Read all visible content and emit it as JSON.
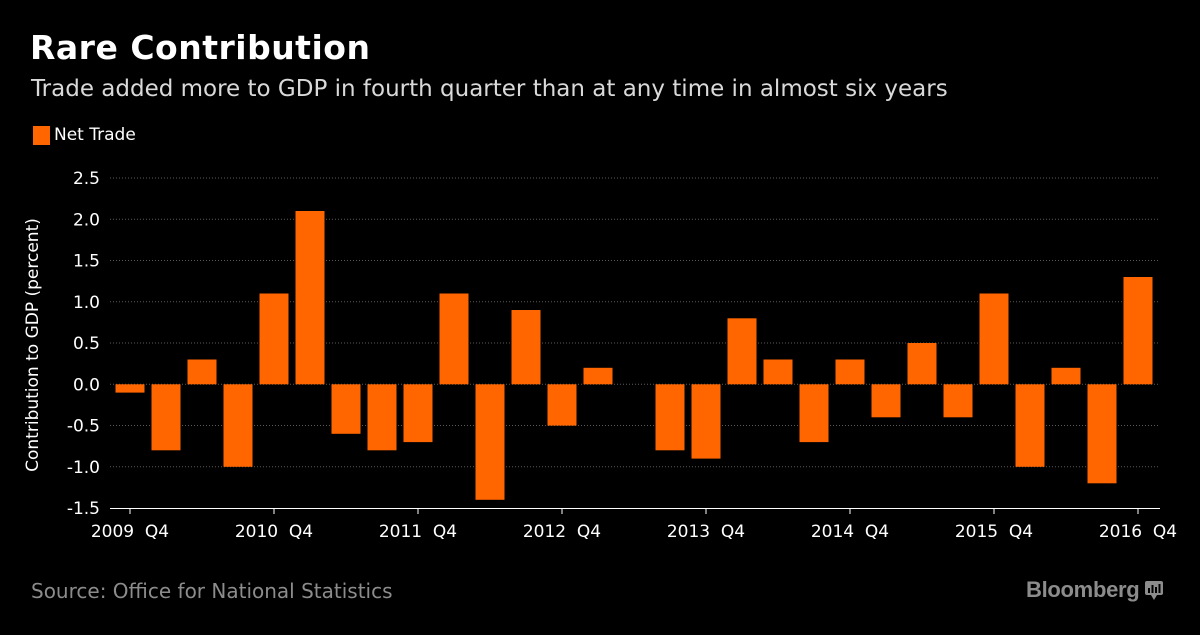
{
  "header": {
    "title": "Rare Contribution",
    "subtitle": "Trade added more to GDP in fourth quarter than at any time in almost six years"
  },
  "footer": {
    "source": "Source: Office for National Statistics",
    "brand": "Bloomberg"
  },
  "colors": {
    "bar": "#ff6600",
    "background": "#000000",
    "grid": "#5a5a5a",
    "axis_text": "#ffffff"
  },
  "chart_data": {
    "type": "bar",
    "title": "Rare Contribution",
    "subtitle": "Trade added more to GDP in fourth quarter than at any time in almost six years",
    "xlabel": "",
    "ylabel": "Contribution to GDP (percent)",
    "ylim": [
      -1.5,
      2.5
    ],
    "yticks": [
      2.5,
      2.0,
      1.5,
      1.0,
      0.5,
      0.0,
      -0.5,
      -1.0,
      -1.5
    ],
    "ytick_labels": [
      "2.5",
      "2.0",
      "1.5",
      "1.0",
      "0.5",
      "0.0",
      "-0.5",
      "-1.0",
      "-1.5"
    ],
    "grid": true,
    "legend": {
      "position": "top-left",
      "entries": [
        "Net Trade"
      ]
    },
    "categories": [
      "2009 Q4",
      "2010 Q1",
      "2010 Q2",
      "2010 Q3",
      "2010 Q4",
      "2011 Q1",
      "2011 Q2",
      "2011 Q3",
      "2011 Q4",
      "2012 Q1",
      "2012 Q2",
      "2012 Q3",
      "2012 Q4",
      "2013 Q1",
      "2013 Q2",
      "2013 Q3",
      "2013 Q4",
      "2014 Q1",
      "2014 Q2",
      "2014 Q3",
      "2014 Q4",
      "2015 Q1",
      "2015 Q2",
      "2015 Q3",
      "2015 Q4",
      "2016 Q1",
      "2016 Q2",
      "2016 Q3",
      "2016 Q4"
    ],
    "series": [
      {
        "name": "Net Trade",
        "values": [
          -0.1,
          -0.8,
          0.3,
          -1.0,
          1.1,
          2.1,
          -0.6,
          -0.8,
          -0.7,
          1.1,
          -1.4,
          0.9,
          -0.5,
          0.2,
          0.0,
          -0.8,
          -0.9,
          0.8,
          0.3,
          -0.7,
          0.3,
          -0.4,
          0.5,
          -0.4,
          1.1,
          -1.0,
          0.2,
          -1.2,
          1.3
        ]
      }
    ],
    "x_tick_labels": [
      {
        "index": 0,
        "label": "2009  Q4"
      },
      {
        "index": 4,
        "label": "2010  Q4"
      },
      {
        "index": 8,
        "label": "2011  Q4"
      },
      {
        "index": 12,
        "label": "2012  Q4"
      },
      {
        "index": 16,
        "label": "2013  Q4"
      },
      {
        "index": 20,
        "label": "2014  Q4"
      },
      {
        "index": 24,
        "label": "2015  Q4"
      },
      {
        "index": 28,
        "label": "2016  Q4"
      }
    ]
  }
}
